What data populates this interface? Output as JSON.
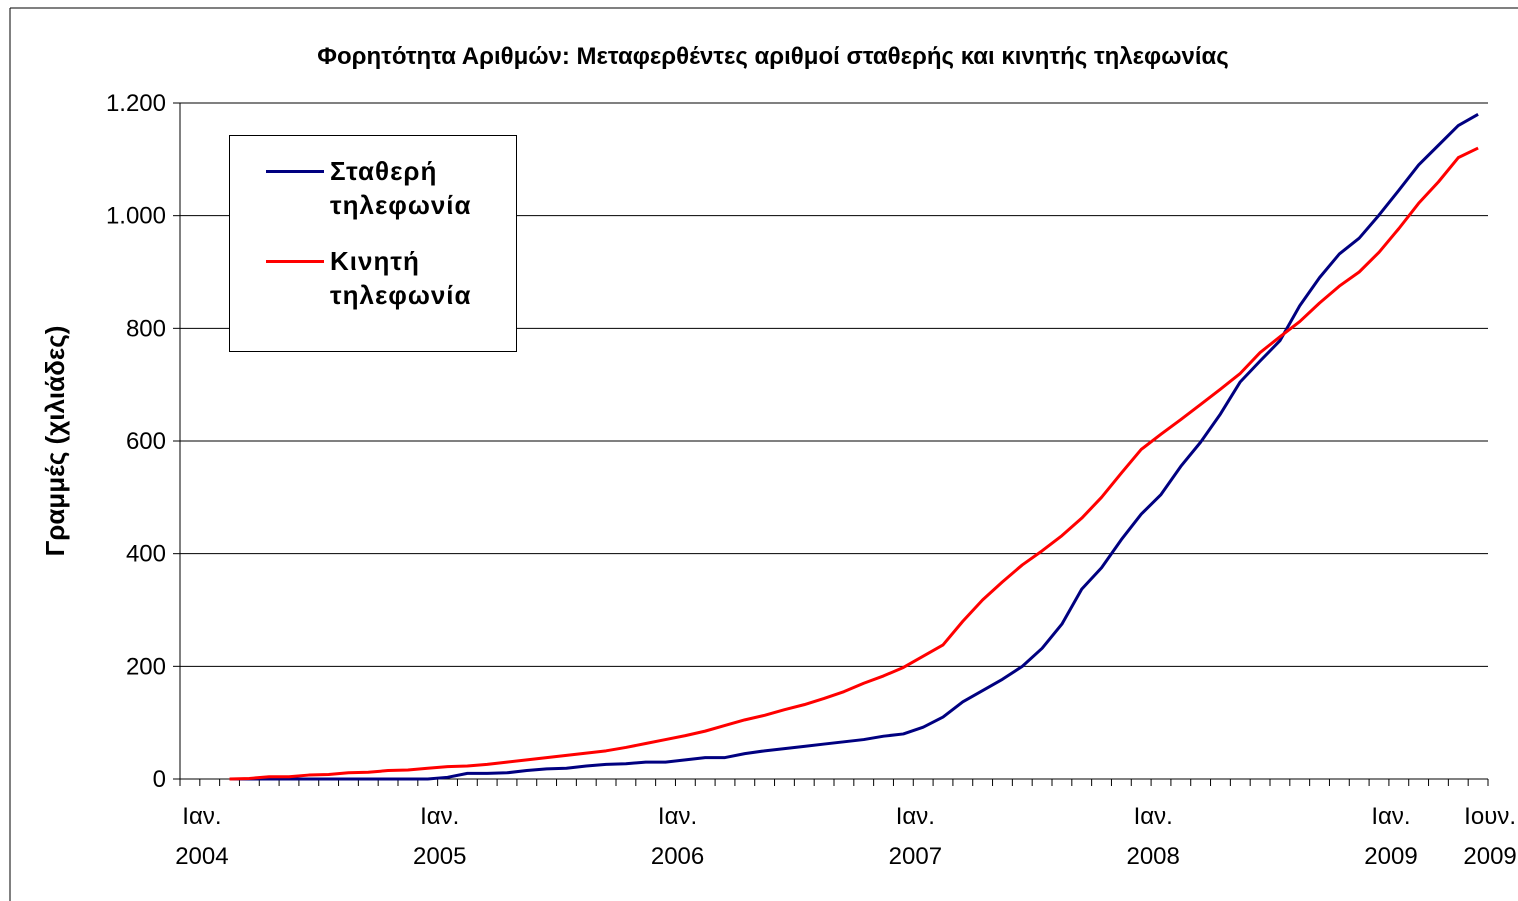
{
  "chart_data": {
    "type": "line",
    "title": "Φορητότητα Αριθμών: Μεταφερθέντες αριθμοί σταθερής και κινητής τηλεφωνίας",
    "y_label": "Γραμμές (χιλιάδες)",
    "categories": [
      [
        "Ιαν.",
        "2004"
      ],
      null,
      null,
      null,
      null,
      null,
      null,
      null,
      null,
      null,
      null,
      null,
      [
        "Ιαν.",
        "2005"
      ],
      null,
      null,
      null,
      null,
      null,
      null,
      null,
      null,
      null,
      null,
      null,
      [
        "Ιαν.",
        "2006"
      ],
      null,
      null,
      null,
      null,
      null,
      null,
      null,
      null,
      null,
      null,
      null,
      [
        "Ιαν.",
        "2007"
      ],
      null,
      null,
      null,
      null,
      null,
      null,
      null,
      null,
      null,
      null,
      null,
      [
        "Ιαν.",
        "2008"
      ],
      null,
      null,
      null,
      null,
      null,
      null,
      null,
      null,
      null,
      null,
      null,
      [
        "Ιαν.",
        "2009"
      ],
      null,
      null,
      null,
      null,
      [
        "Ιουν.",
        "2009"
      ]
    ],
    "series": [
      {
        "name": "Σταθερή τηλεφωνία",
        "color": "#000080",
        "values": [
          null,
          null,
          0,
          0,
          0,
          0,
          0,
          0,
          0,
          0,
          0,
          0,
          0,
          3,
          10,
          10,
          11,
          15,
          18,
          19,
          23,
          26,
          27,
          30,
          30,
          34,
          38,
          38,
          45,
          50,
          54,
          58,
          62,
          66,
          70,
          76,
          80,
          92,
          110,
          137,
          157,
          177,
          200,
          232,
          275,
          337,
          375,
          425,
          470,
          505,
          555,
          598,
          648,
          705,
          742,
          778,
          840,
          890,
          932,
          960,
          1001,
          1045,
          1090,
          1125,
          1160,
          1180
        ]
      },
      {
        "name": "Κινητή τηλεφωνία",
        "color": "#ff0000",
        "values": [
          null,
          null,
          0,
          1,
          4,
          4,
          7,
          8,
          11,
          12,
          15,
          16,
          19,
          22,
          23,
          26,
          30,
          34,
          38,
          42,
          46,
          50,
          56,
          63,
          70,
          77,
          85,
          95,
          105,
          113,
          123,
          132,
          143,
          155,
          170,
          183,
          198,
          218,
          238,
          280,
          318,
          350,
          380,
          405,
          432,
          463,
          500,
          543,
          585,
          612,
          638,
          665,
          692,
          720,
          757,
          785,
          812,
          845,
          875,
          900,
          935,
          977,
          1022,
          1060,
          1103,
          1120
        ]
      }
    ],
    "ylim": [
      0,
      1200
    ],
    "yticks": [
      0,
      200,
      400,
      600,
      800,
      {
        "value": 1000,
        "label": "1.000"
      },
      {
        "value": 1200,
        "label": "1.200"
      }
    ],
    "grid": true
  }
}
